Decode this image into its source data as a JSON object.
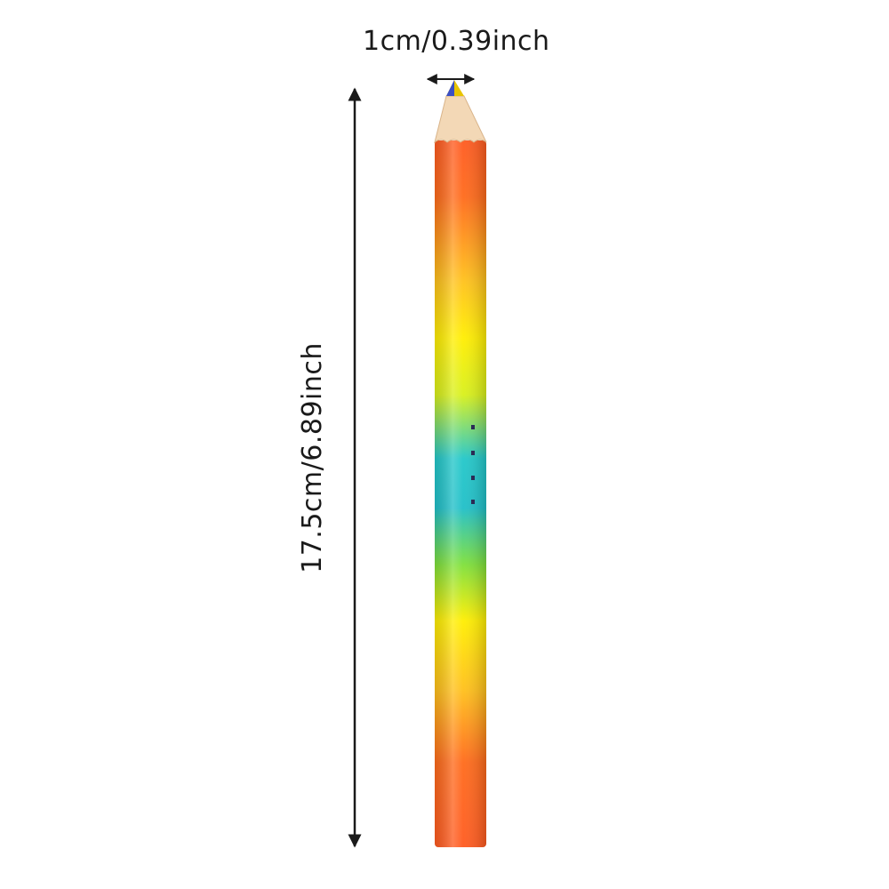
{
  "dimensions": {
    "width_label": "1cm/0.39inch",
    "height_label": "17.5cm/6.89inch"
  },
  "pencil": {
    "body_colors": [
      "#ff5a1f",
      "#ffee00",
      "#22c7c9",
      "#ffee00",
      "#ff5a1f"
    ],
    "wood_color": "#f3d8b6",
    "lead_colors": [
      "#3b4fc4",
      "#e8c400"
    ]
  }
}
